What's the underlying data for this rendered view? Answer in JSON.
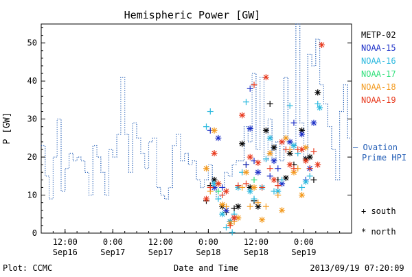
{
  "footer": {
    "left": "Plot: CCMC",
    "center": "Date and Time",
    "right": "2013/09/19 07:20:09"
  },
  "chart_data": {
    "type": "scatter",
    "title": "Hemispheric Power [GW]",
    "xlabel": "Date and Time",
    "ylabel": "P [GW]",
    "ylim": [
      0,
      55
    ],
    "xlim_hours": [
      0,
      78
    ],
    "y_ticks": [
      0,
      10,
      20,
      30,
      40,
      50
    ],
    "x_ticks": [
      {
        "hour": 6,
        "time": "12:00",
        "date": "Sep16"
      },
      {
        "hour": 18,
        "time": "0:00",
        "date": "Sep17"
      },
      {
        "hour": 30,
        "time": "12:00",
        "date": "Sep17"
      },
      {
        "hour": 42,
        "time": "0:00",
        "date": "Sep18"
      },
      {
        "hour": 54,
        "time": "12:00",
        "date": "Sep18"
      },
      {
        "hour": 66,
        "time": "0:00",
        "date": "Sep19"
      }
    ],
    "grid": false,
    "legend_position": "right",
    "ovation": {
      "name": "— Ovation Prime HPI",
      "color": "#1e5ab4",
      "hours": [
        0,
        1,
        2,
        3,
        4,
        5,
        6,
        7,
        8,
        9,
        10,
        11,
        12,
        13,
        14,
        15,
        16,
        17,
        18,
        19,
        20,
        21,
        22,
        23,
        24,
        25,
        26,
        27,
        28,
        29,
        30,
        31,
        32,
        33,
        34,
        35,
        36,
        37,
        38,
        39,
        40,
        41,
        42,
        43,
        44,
        45,
        46,
        47,
        48,
        49,
        50,
        51,
        52,
        53,
        54,
        55,
        56,
        57,
        58,
        59,
        60,
        61,
        62,
        63,
        64,
        65,
        66,
        67,
        68,
        69,
        70,
        71,
        72,
        73,
        74,
        75,
        76,
        77
      ],
      "values": [
        23,
        15,
        9,
        20,
        30,
        11,
        17,
        21,
        19,
        20,
        19,
        16,
        10,
        23,
        20,
        16,
        10,
        22,
        20,
        26,
        41,
        26,
        16,
        29,
        25,
        21,
        17,
        24,
        25,
        12,
        10,
        9,
        12,
        23,
        26,
        19,
        21,
        18,
        19,
        14,
        12,
        14,
        18,
        13,
        9,
        10,
        16,
        15,
        18,
        19,
        19,
        28,
        24,
        42,
        22,
        41,
        19,
        30,
        19,
        24,
        19,
        41,
        24,
        22,
        55,
        29,
        20,
        47,
        44,
        51,
        39,
        34,
        28,
        22,
        14,
        32,
        39,
        25
      ]
    },
    "satellites": [
      {
        "name": "METP-02",
        "color": "#000000"
      },
      {
        "name": "NOAA-15",
        "color": "#1c2fc7"
      },
      {
        "name": "NOAA-16",
        "color": "#29b8de"
      },
      {
        "name": "NOAA-17",
        "color": "#2fe07a"
      },
      {
        "name": "NOAA-18",
        "color": "#f39a1e"
      },
      {
        "name": "NOAA-19",
        "color": "#e83a1e"
      }
    ],
    "marker_legend": [
      {
        "marker": "plus",
        "label": "south"
      },
      {
        "marker": "star",
        "label": "north"
      }
    ],
    "points": [
      {
        "h": 41.5,
        "v": 8.5,
        "sat": 0,
        "m": "plus"
      },
      {
        "h": 42.5,
        "v": 12.5,
        "sat": 0,
        "m": "plus"
      },
      {
        "h": 43.5,
        "v": 14,
        "sat": 0,
        "m": "star"
      },
      {
        "h": 44.5,
        "v": 13,
        "sat": 0,
        "m": "plus"
      },
      {
        "h": 45.5,
        "v": 7,
        "sat": 0,
        "m": "star"
      },
      {
        "h": 46.5,
        "v": 5.5,
        "sat": 0,
        "m": "plus"
      },
      {
        "h": 47.5,
        "v": 3,
        "sat": 0,
        "m": "star"
      },
      {
        "h": 48.5,
        "v": 6.5,
        "sat": 0,
        "m": "plus"
      },
      {
        "h": 49.5,
        "v": 7,
        "sat": 0,
        "m": "star"
      },
      {
        "h": 50.5,
        "v": 23.5,
        "sat": 0,
        "m": "star"
      },
      {
        "h": 51.5,
        "v": 18,
        "sat": 0,
        "m": "plus"
      },
      {
        "h": 52.5,
        "v": 12,
        "sat": 0,
        "m": "star"
      },
      {
        "h": 53.5,
        "v": 8.5,
        "sat": 0,
        "m": "plus"
      },
      {
        "h": 54.5,
        "v": 7,
        "sat": 0,
        "m": "star"
      },
      {
        "h": 56.5,
        "v": 27,
        "sat": 0,
        "m": "star"
      },
      {
        "h": 57.5,
        "v": 34,
        "sat": 0,
        "m": "plus"
      },
      {
        "h": 58.5,
        "v": 22.5,
        "sat": 0,
        "m": "star"
      },
      {
        "h": 59.5,
        "v": 14,
        "sat": 0,
        "m": "plus"
      },
      {
        "h": 61.5,
        "v": 14.5,
        "sat": 0,
        "m": "star"
      },
      {
        "h": 62.5,
        "v": 21,
        "sat": 0,
        "m": "star"
      },
      {
        "h": 63.5,
        "v": 18,
        "sat": 0,
        "m": "plus"
      },
      {
        "h": 65.5,
        "v": 27,
        "sat": 0,
        "m": "star"
      },
      {
        "h": 66.5,
        "v": 19.5,
        "sat": 0,
        "m": "star"
      },
      {
        "h": 67.5,
        "v": 20,
        "sat": 0,
        "m": "star"
      },
      {
        "h": 68.5,
        "v": 14,
        "sat": 0,
        "m": "plus"
      },
      {
        "h": 69.5,
        "v": 37,
        "sat": 0,
        "m": "star"
      },
      {
        "h": 42.5,
        "v": 27,
        "sat": 1,
        "m": "plus"
      },
      {
        "h": 43.5,
        "v": 12,
        "sat": 1,
        "m": "star"
      },
      {
        "h": 44.5,
        "v": 25,
        "sat": 1,
        "m": "star"
      },
      {
        "h": 45.5,
        "v": 12,
        "sat": 1,
        "m": "plus"
      },
      {
        "h": 46.5,
        "v": 6,
        "sat": 1,
        "m": "star"
      },
      {
        "h": 47.5,
        "v": 3,
        "sat": 1,
        "m": "plus"
      },
      {
        "h": 48.5,
        "v": 4,
        "sat": 1,
        "m": "star"
      },
      {
        "h": 51.5,
        "v": 18,
        "sat": 1,
        "m": "plus"
      },
      {
        "h": 52.5,
        "v": 27.5,
        "sat": 1,
        "m": "star"
      },
      {
        "h": 53.5,
        "v": 19,
        "sat": 1,
        "m": "plus"
      },
      {
        "h": 54.5,
        "v": 16,
        "sat": 1,
        "m": "star"
      },
      {
        "h": 57.5,
        "v": 15,
        "sat": 1,
        "m": "plus"
      },
      {
        "h": 58.5,
        "v": 19,
        "sat": 1,
        "m": "star"
      },
      {
        "h": 59.5,
        "v": 17,
        "sat": 1,
        "m": "plus"
      },
      {
        "h": 60.5,
        "v": 13,
        "sat": 1,
        "m": "star"
      },
      {
        "h": 62.5,
        "v": 24,
        "sat": 1,
        "m": "star"
      },
      {
        "h": 63.5,
        "v": 29,
        "sat": 1,
        "m": "plus"
      },
      {
        "h": 65.5,
        "v": 26,
        "sat": 1,
        "m": "star"
      },
      {
        "h": 66.5,
        "v": 14,
        "sat": 1,
        "m": "plus"
      },
      {
        "h": 67.5,
        "v": 17,
        "sat": 1,
        "m": "star"
      },
      {
        "h": 68.5,
        "v": 29,
        "sat": 1,
        "m": "star"
      },
      {
        "h": 52.5,
        "v": 38,
        "sat": 1,
        "m": "plus"
      },
      {
        "h": 41.5,
        "v": 28,
        "sat": 2,
        "m": "plus"
      },
      {
        "h": 42.5,
        "v": 32,
        "sat": 2,
        "m": "plus"
      },
      {
        "h": 43.5,
        "v": 13,
        "sat": 2,
        "m": "star"
      },
      {
        "h": 44.5,
        "v": 9,
        "sat": 2,
        "m": "plus"
      },
      {
        "h": 45.5,
        "v": 5,
        "sat": 2,
        "m": "star"
      },
      {
        "h": 46.5,
        "v": 1.5,
        "sat": 2,
        "m": "plus"
      },
      {
        "h": 47.5,
        "v": 3,
        "sat": 2,
        "m": "star"
      },
      {
        "h": 48.5,
        "v": 5,
        "sat": 2,
        "m": "plus"
      },
      {
        "h": 49.5,
        "v": 12,
        "sat": 2,
        "m": "star"
      },
      {
        "h": 50.5,
        "v": 16,
        "sat": 2,
        "m": "plus"
      },
      {
        "h": 51.5,
        "v": 34.5,
        "sat": 2,
        "m": "plus"
      },
      {
        "h": 52.5,
        "v": 11,
        "sat": 2,
        "m": "star"
      },
      {
        "h": 53.5,
        "v": 9,
        "sat": 2,
        "m": "plus"
      },
      {
        "h": 55.5,
        "v": 12,
        "sat": 2,
        "m": "star"
      },
      {
        "h": 56.5,
        "v": 19.5,
        "sat": 2,
        "m": "plus"
      },
      {
        "h": 57.5,
        "v": 25,
        "sat": 2,
        "m": "star"
      },
      {
        "h": 58.5,
        "v": 11,
        "sat": 2,
        "m": "plus"
      },
      {
        "h": 59.5,
        "v": 11,
        "sat": 2,
        "m": "star"
      },
      {
        "h": 60.5,
        "v": 14,
        "sat": 2,
        "m": "plus"
      },
      {
        "h": 62.5,
        "v": 33.5,
        "sat": 2,
        "m": "plus"
      },
      {
        "h": 63.5,
        "v": 23,
        "sat": 2,
        "m": "star"
      },
      {
        "h": 64.5,
        "v": 21,
        "sat": 2,
        "m": "plus"
      },
      {
        "h": 65.5,
        "v": 12,
        "sat": 2,
        "m": "plus"
      },
      {
        "h": 66.5,
        "v": 13.5,
        "sat": 2,
        "m": "star"
      },
      {
        "h": 67.5,
        "v": 15,
        "sat": 2,
        "m": "plus"
      },
      {
        "h": 69.5,
        "v": 34,
        "sat": 2,
        "m": "plus"
      },
      {
        "h": 70.0,
        "v": 33,
        "sat": 2,
        "m": "star"
      },
      {
        "h": 48.0,
        "v": 0.2,
        "sat": 2,
        "m": "plus"
      },
      {
        "h": 44.5,
        "v": 11,
        "sat": 3,
        "m": "plus"
      },
      {
        "h": 53.5,
        "v": 14,
        "sat": 3,
        "m": "plus"
      },
      {
        "h": 41.5,
        "v": 17,
        "sat": 4,
        "m": "star"
      },
      {
        "h": 42.5,
        "v": 11,
        "sat": 4,
        "m": "plus"
      },
      {
        "h": 43.5,
        "v": 27,
        "sat": 4,
        "m": "star"
      },
      {
        "h": 44.5,
        "v": 13,
        "sat": 4,
        "m": "plus"
      },
      {
        "h": 45.5,
        "v": 7.5,
        "sat": 4,
        "m": "star"
      },
      {
        "h": 46.5,
        "v": 7,
        "sat": 4,
        "m": "plus"
      },
      {
        "h": 47.5,
        "v": 2.5,
        "sat": 4,
        "m": "star"
      },
      {
        "h": 48.5,
        "v": 3,
        "sat": 4,
        "m": "plus"
      },
      {
        "h": 49.5,
        "v": 4,
        "sat": 4,
        "m": "star"
      },
      {
        "h": 50.5,
        "v": 12,
        "sat": 4,
        "m": "plus"
      },
      {
        "h": 51.5,
        "v": 16,
        "sat": 4,
        "m": "star"
      },
      {
        "h": 52.5,
        "v": 7,
        "sat": 4,
        "m": "plus"
      },
      {
        "h": 53.5,
        "v": 12,
        "sat": 4,
        "m": "star"
      },
      {
        "h": 54.5,
        "v": 8,
        "sat": 4,
        "m": "plus"
      },
      {
        "h": 55.5,
        "v": 3.5,
        "sat": 4,
        "m": "star"
      },
      {
        "h": 56.5,
        "v": 7,
        "sat": 4,
        "m": "plus"
      },
      {
        "h": 57.5,
        "v": 21,
        "sat": 4,
        "m": "star"
      },
      {
        "h": 59.5,
        "v": 10,
        "sat": 4,
        "m": "plus"
      },
      {
        "h": 60.5,
        "v": 6,
        "sat": 4,
        "m": "star"
      },
      {
        "h": 61.5,
        "v": 25,
        "sat": 4,
        "m": "star"
      },
      {
        "h": 62.5,
        "v": 22,
        "sat": 4,
        "m": "plus"
      },
      {
        "h": 63.5,
        "v": 16,
        "sat": 4,
        "m": "star"
      },
      {
        "h": 64.5,
        "v": 17,
        "sat": 4,
        "m": "plus"
      },
      {
        "h": 65.5,
        "v": 10,
        "sat": 4,
        "m": "star"
      },
      {
        "h": 66.5,
        "v": 22.5,
        "sat": 4,
        "m": "star"
      },
      {
        "h": 41.5,
        "v": 9,
        "sat": 5,
        "m": "star"
      },
      {
        "h": 42.5,
        "v": 12,
        "sat": 5,
        "m": "plus"
      },
      {
        "h": 43.5,
        "v": 21,
        "sat": 5,
        "m": "star"
      },
      {
        "h": 44.5,
        "v": 13,
        "sat": 5,
        "m": "star"
      },
      {
        "h": 45.5,
        "v": 10,
        "sat": 5,
        "m": "plus"
      },
      {
        "h": 46.5,
        "v": 11,
        "sat": 5,
        "m": "star"
      },
      {
        "h": 47.5,
        "v": 2,
        "sat": 5,
        "m": "plus"
      },
      {
        "h": 48.5,
        "v": 4,
        "sat": 5,
        "m": "star"
      },
      {
        "h": 49.5,
        "v": 12.5,
        "sat": 5,
        "m": "plus"
      },
      {
        "h": 50.5,
        "v": 31,
        "sat": 5,
        "m": "star"
      },
      {
        "h": 51.5,
        "v": 13,
        "sat": 5,
        "m": "plus"
      },
      {
        "h": 52.5,
        "v": 20,
        "sat": 5,
        "m": "star"
      },
      {
        "h": 53.5,
        "v": 39,
        "sat": 5,
        "m": "plus"
      },
      {
        "h": 54.5,
        "v": 18.5,
        "sat": 5,
        "m": "star"
      },
      {
        "h": 55.5,
        "v": 12,
        "sat": 5,
        "m": "plus"
      },
      {
        "h": 56.5,
        "v": 41,
        "sat": 5,
        "m": "star"
      },
      {
        "h": 57.5,
        "v": 17,
        "sat": 5,
        "m": "plus"
      },
      {
        "h": 58.5,
        "v": 14,
        "sat": 5,
        "m": "star"
      },
      {
        "h": 59.5,
        "v": 12.5,
        "sat": 5,
        "m": "plus"
      },
      {
        "h": 60.5,
        "v": 24,
        "sat": 5,
        "m": "star"
      },
      {
        "h": 61.5,
        "v": 22,
        "sat": 5,
        "m": "plus"
      },
      {
        "h": 62.5,
        "v": 18,
        "sat": 5,
        "m": "star"
      },
      {
        "h": 63.5,
        "v": 17,
        "sat": 5,
        "m": "plus"
      },
      {
        "h": 64.5,
        "v": 22,
        "sat": 5,
        "m": "plus"
      },
      {
        "h": 65.5,
        "v": 22,
        "sat": 5,
        "m": "star"
      },
      {
        "h": 66.5,
        "v": 19,
        "sat": 5,
        "m": "star"
      },
      {
        "h": 67.5,
        "v": 17,
        "sat": 5,
        "m": "plus"
      },
      {
        "h": 68.5,
        "v": 21.5,
        "sat": 5,
        "m": "plus"
      },
      {
        "h": 69.5,
        "v": 18,
        "sat": 5,
        "m": "star"
      },
      {
        "h": 70.5,
        "v": 49.5,
        "sat": 5,
        "m": "star"
      }
    ]
  }
}
